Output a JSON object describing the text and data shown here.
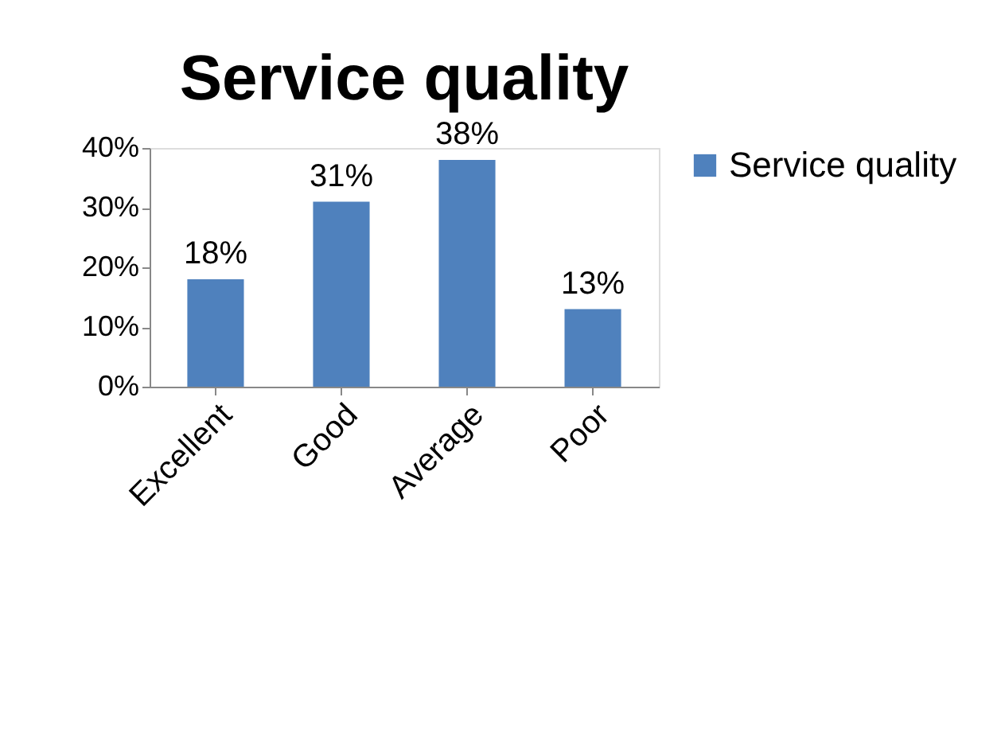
{
  "chart_data": {
    "type": "bar",
    "title": "Service quality",
    "categories": [
      "Excellent",
      "Good",
      "Average",
      "Poor"
    ],
    "series": [
      {
        "name": "Service quality",
        "color": "#4f81bd",
        "values": [
          18,
          31,
          38,
          13
        ]
      }
    ],
    "value_labels": [
      "18%",
      "31%",
      "38%",
      "13%"
    ],
    "ylim": [
      0,
      40
    ],
    "yticks": [
      {
        "value": 0,
        "label": "0%"
      },
      {
        "value": 10,
        "label": "10%"
      },
      {
        "value": 20,
        "label": "20%"
      },
      {
        "value": 30,
        "label": "30%"
      },
      {
        "value": 40,
        "label": "40%"
      }
    ],
    "grid": false,
    "legend": "right"
  }
}
